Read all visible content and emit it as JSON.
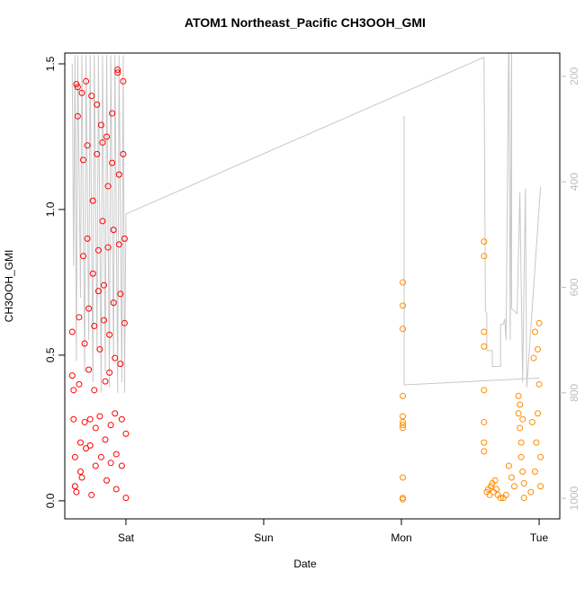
{
  "chart_data": {
    "type": "scatter",
    "title": "ATOM1 Northeast_Pacific CH3OOH_GMI",
    "x_label": "Date",
    "y_label": "CH3OOH_GMI",
    "xlim": [
      -0.444,
      3.15
    ],
    "xticks": [
      {
        "value": 0,
        "label": "Sat"
      },
      {
        "value": 1,
        "label": "Sun"
      },
      {
        "value": 2,
        "label": "Mon"
      },
      {
        "value": 3,
        "label": "Tue"
      }
    ],
    "ylim": [
      -0.062,
      1.537
    ],
    "yticks": [
      {
        "value": 0,
        "label": "0.0"
      },
      0.5,
      {
        "value": 1,
        "label": "1.0"
      },
      1.5
    ],
    "y2lim": [
      1039,
      156
    ],
    "y2ticks": [
      200,
      400,
      600,
      800,
      1000
    ],
    "series": [
      {
        "color": "#ff0000",
        "x": [
          -0.39,
          -0.39,
          -0.38,
          -0.38,
          -0.37,
          -0.37,
          -0.36,
          -0.36,
          -0.35,
          -0.35,
          -0.34,
          -0.34,
          -0.33,
          -0.33,
          -0.32,
          -0.32,
          -0.31,
          -0.31,
          -0.3,
          -0.3,
          -0.29,
          -0.29,
          -0.28,
          -0.28,
          -0.27,
          -0.27,
          -0.26,
          -0.26,
          -0.25,
          -0.25,
          -0.24,
          -0.24,
          -0.23,
          -0.23,
          -0.22,
          -0.22,
          -0.21,
          -0.21,
          -0.2,
          -0.2,
          -0.19,
          -0.19,
          -0.18,
          -0.18,
          -0.17,
          -0.17,
          -0.16,
          -0.16,
          -0.15,
          -0.15,
          -0.14,
          -0.14,
          -0.13,
          -0.13,
          -0.12,
          -0.12,
          -0.11,
          -0.11,
          -0.1,
          -0.1,
          -0.09,
          -0.09,
          -0.08,
          -0.08,
          -0.07,
          -0.07,
          -0.06,
          -0.06,
          -0.05,
          -0.05,
          -0.04,
          -0.04,
          -0.03,
          -0.03,
          -0.02,
          -0.02,
          -0.01,
          -0.01,
          0.0,
          0.0
        ],
        "values": [
          0.58,
          0.43,
          0.38,
          0.28,
          0.15,
          0.05,
          0.03,
          1.43,
          1.42,
          1.32,
          0.63,
          0.4,
          0.2,
          0.1,
          0.08,
          1.4,
          1.17,
          0.84,
          0.54,
          0.27,
          0.18,
          1.44,
          1.22,
          0.9,
          0.66,
          0.45,
          0.28,
          0.19,
          0.02,
          1.39,
          1.03,
          0.78,
          0.6,
          0.38,
          0.25,
          0.12,
          1.36,
          1.19,
          0.86,
          0.72,
          0.52,
          0.29,
          0.15,
          1.29,
          1.23,
          0.96,
          0.74,
          0.62,
          0.41,
          0.21,
          0.07,
          1.25,
          1.08,
          0.87,
          0.57,
          0.44,
          0.26,
          0.13,
          1.33,
          1.16,
          0.93,
          0.68,
          0.49,
          0.3,
          0.16,
          0.04,
          1.48,
          1.47,
          1.12,
          0.88,
          0.71,
          0.47,
          0.28,
          0.12,
          1.44,
          1.19,
          0.9,
          0.61,
          0.23,
          0.01
        ]
      },
      {
        "color": "#ff8c00",
        "x": [
          2.01,
          2.01,
          2.01,
          2.01,
          2.01,
          2.01,
          2.01,
          2.01,
          2.01,
          2.01,
          2.01,
          2.6,
          2.6,
          2.6,
          2.6,
          2.6,
          2.6,
          2.6,
          2.6,
          2.62,
          2.63,
          2.64,
          2.65,
          2.66,
          2.67,
          2.68,
          2.69,
          2.7,
          2.72,
          2.74,
          2.76,
          2.78,
          2.8,
          2.82,
          2.85,
          2.85,
          2.86,
          2.86,
          2.87,
          2.87,
          2.88,
          2.88,
          2.89,
          2.89,
          2.94,
          2.95,
          2.96,
          2.97,
          2.98,
          2.99,
          3.0,
          3.0,
          3.01,
          3.01,
          2.97,
          2.99
        ],
        "values": [
          0.75,
          0.67,
          0.59,
          0.36,
          0.29,
          0.27,
          0.26,
          0.25,
          0.08,
          0.01,
          0.005,
          0.89,
          0.84,
          0.58,
          0.53,
          0.38,
          0.27,
          0.2,
          0.17,
          0.03,
          0.04,
          0.02,
          0.05,
          0.06,
          0.03,
          0.07,
          0.04,
          0.02,
          0.01,
          0.01,
          0.02,
          0.12,
          0.08,
          0.05,
          0.36,
          0.3,
          0.33,
          0.25,
          0.2,
          0.15,
          0.28,
          0.1,
          0.06,
          0.01,
          0.03,
          0.27,
          0.49,
          0.58,
          0.2,
          0.52,
          0.61,
          0.4,
          0.15,
          0.05,
          0.1,
          0.3
        ]
      },
      {
        "color": "#c8c8c8",
        "type": "line",
        "axis": "y2",
        "x": [
          -0.39,
          -0.38,
          -0.37,
          -0.36,
          -0.35,
          -0.33,
          -0.32,
          -0.3,
          -0.29,
          -0.27,
          -0.26,
          -0.24,
          -0.23,
          -0.21,
          -0.2,
          -0.18,
          -0.17,
          -0.15,
          -0.14,
          -0.12,
          -0.11,
          -0.09,
          -0.08,
          -0.06,
          -0.05,
          -0.03,
          -0.02,
          -0.01,
          0.0,
          2.6,
          2.61,
          2.62,
          2.62,
          2.66,
          2.66,
          2.72,
          2.72,
          2.74,
          2.75,
          2.76,
          2.78,
          2.79,
          2.8,
          2.8,
          2.84,
          2.86,
          2.88,
          2.9,
          2.91,
          3.01,
          null,
          2.02,
          2.02,
          3.0
        ],
        "values": [
          176,
          560,
          160,
          740,
          160,
          620,
          160,
          760,
          160,
          700,
          160,
          780,
          160,
          720,
          160,
          800,
          160,
          760,
          160,
          790,
          160,
          740,
          160,
          800,
          160,
          780,
          160,
          800,
          461,
          164,
          644,
          650,
          720,
          720,
          750,
          750,
          670,
          670,
          660,
          700,
          100,
          700,
          100,
          640,
          650,
          420,
          780,
          413,
          790,
          410,
          null,
          275,
          785,
          772
        ]
      }
    ]
  }
}
